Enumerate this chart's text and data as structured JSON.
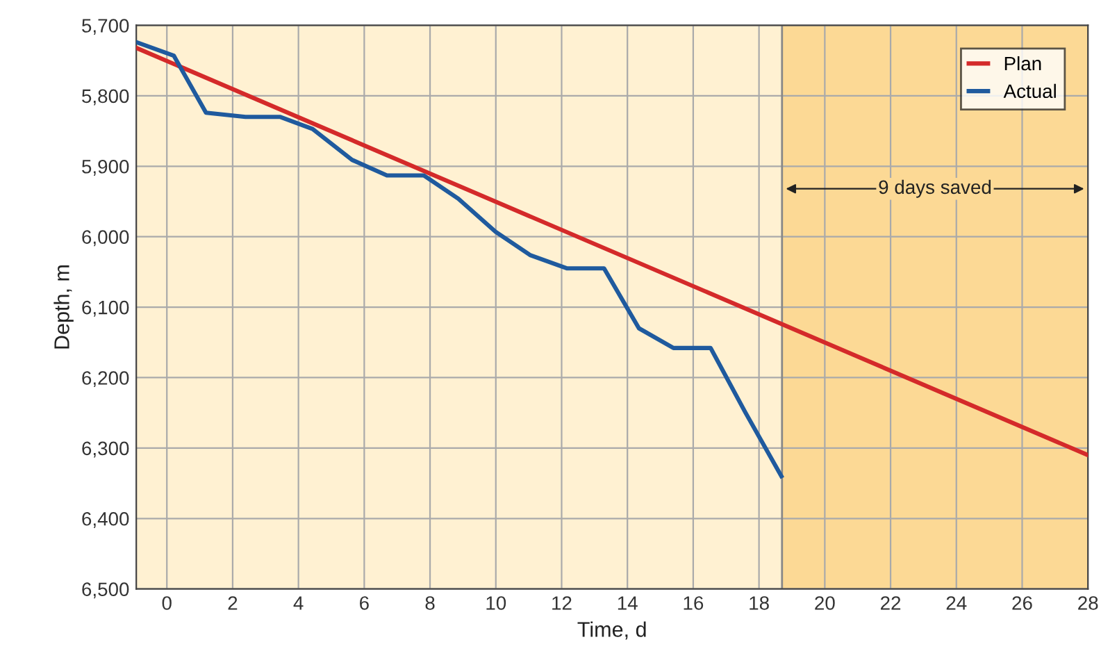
{
  "chart_data": {
    "type": "line",
    "xlabel": "Time, d",
    "ylabel": "Depth, m",
    "xlim": [
      -0.93,
      28
    ],
    "xticks": [
      0,
      2,
      4,
      6,
      8,
      10,
      12,
      14,
      16,
      18,
      20,
      22,
      24,
      26,
      28
    ],
    "ylim": [
      6500,
      5700
    ],
    "yticks": [
      {
        "value": 5700,
        "label": "5,700"
      },
      {
        "value": 5800,
        "label": "5,800"
      },
      {
        "value": 5900,
        "label": "5,900"
      },
      {
        "value": 6000,
        "label": "6,000"
      },
      {
        "value": 6100,
        "label": "6,100"
      },
      {
        "value": 6200,
        "label": "6,200"
      },
      {
        "value": 6300,
        "label": "6,300"
      },
      {
        "value": 6400,
        "label": "6,400"
      },
      {
        "value": 6500,
        "label": "6,500"
      }
    ],
    "series": [
      {
        "name": "Plan",
        "color": "#d42a2a",
        "x": [
          -0.93,
          28
        ],
        "values": [
          5732,
          6310
        ]
      },
      {
        "name": "Actual",
        "color": "#1f5a9e",
        "x": [
          -0.92,
          0.21,
          1.19,
          2.39,
          3.45,
          4.43,
          5.63,
          6.69,
          7.81,
          8.86,
          9.99,
          11.04,
          12.17,
          13.29,
          14.35,
          15.4,
          16.53,
          17.58,
          18.68
        ],
        "values": [
          5724,
          5743,
          5824,
          5830,
          5830,
          5847,
          5891,
          5913,
          5913,
          5946,
          5993,
          6026,
          6045,
          6045,
          6130,
          6158,
          6158,
          6249,
          6340
        ]
      }
    ],
    "bands": [
      {
        "axis": "x",
        "from": 18.7,
        "to": 28,
        "label": "9 days saved",
        "color": "#fcd995"
      }
    ],
    "ref_lines": [
      {
        "axis": "x",
        "value": 18.7,
        "label": null,
        "color": "#888888",
        "line_style": "solid"
      }
    ],
    "grid": true,
    "legend": "top right",
    "marker": "none",
    "line_style": "solid"
  }
}
